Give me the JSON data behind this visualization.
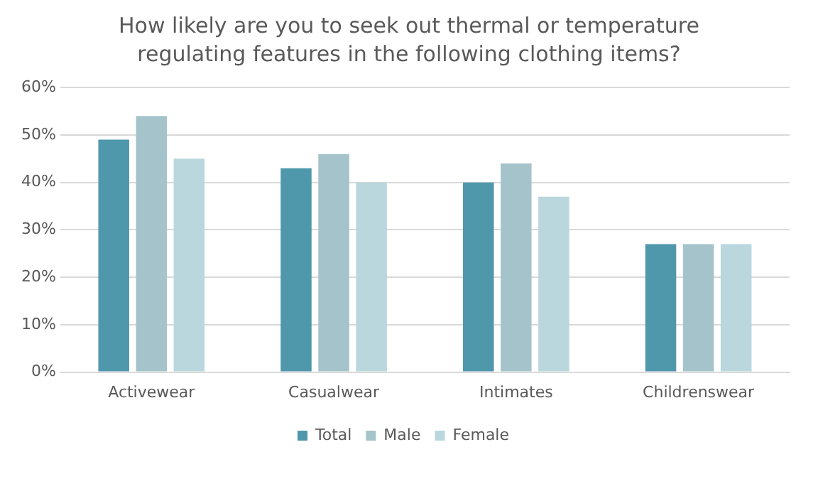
{
  "chart_data": {
    "type": "bar",
    "title": "How likely are you to seek out thermal or temperature regulating features in the following clothing items?",
    "categories": [
      "Activewear",
      "Casualwear",
      "Intimates",
      "Childrenswear"
    ],
    "series": [
      {
        "name": "Total",
        "color": "#4f98ab",
        "values": [
          49,
          43,
          40,
          27
        ]
      },
      {
        "name": "Male",
        "color": "#a5c3ca",
        "values": [
          54,
          46,
          44,
          27
        ]
      },
      {
        "name": "Female",
        "color": "#b9d7dd",
        "values": [
          45,
          40,
          37,
          27
        ]
      }
    ],
    "ylim": [
      0,
      60
    ],
    "yticks": [
      {
        "value": 0,
        "label": "0%"
      },
      {
        "value": 10,
        "label": "10%"
      },
      {
        "value": 20,
        "label": "20%"
      },
      {
        "value": 30,
        "label": "30%"
      },
      {
        "value": 40,
        "label": "40%"
      },
      {
        "value": 50,
        "label": "50%"
      },
      {
        "value": 60,
        "label": "60%"
      }
    ],
    "grid": "y",
    "legend": "bottom"
  }
}
